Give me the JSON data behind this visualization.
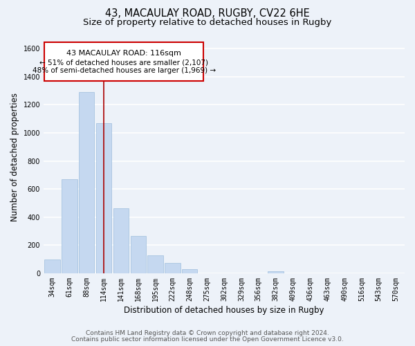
{
  "title": "43, MACAULAY ROAD, RUGBY, CV22 6HE",
  "subtitle": "Size of property relative to detached houses in Rugby",
  "xlabel": "Distribution of detached houses by size in Rugby",
  "ylabel": "Number of detached properties",
  "bar_labels": [
    "34sqm",
    "61sqm",
    "88sqm",
    "114sqm",
    "141sqm",
    "168sqm",
    "195sqm",
    "222sqm",
    "248sqm",
    "275sqm",
    "302sqm",
    "329sqm",
    "356sqm",
    "382sqm",
    "409sqm",
    "436sqm",
    "463sqm",
    "490sqm",
    "516sqm",
    "543sqm",
    "570sqm"
  ],
  "bar_values": [
    100,
    670,
    1290,
    1070,
    465,
    265,
    130,
    75,
    30,
    0,
    0,
    0,
    0,
    15,
    0,
    0,
    0,
    0,
    0,
    0,
    0
  ],
  "bar_color": "#c5d8f0",
  "bar_edge_color": "#a8c4e0",
  "vline_x_index": 3,
  "vline_color": "#aa0000",
  "ylim": [
    0,
    1650
  ],
  "yticks": [
    0,
    200,
    400,
    600,
    800,
    1000,
    1200,
    1400,
    1600
  ],
  "annotation_title": "43 MACAULAY ROAD: 116sqm",
  "annotation_line1": "← 51% of detached houses are smaller (2,107)",
  "annotation_line2": "48% of semi-detached houses are larger (1,969) →",
  "annotation_box_color": "#ffffff",
  "annotation_box_edge": "#cc0000",
  "footer_line1": "Contains HM Land Registry data © Crown copyright and database right 2024.",
  "footer_line2": "Contains public sector information licensed under the Open Government Licence v3.0.",
  "bg_color": "#edf2f9",
  "plot_bg_color": "#edf2f9",
  "grid_color": "#ffffff",
  "title_fontsize": 10.5,
  "subtitle_fontsize": 9.5,
  "axis_label_fontsize": 8.5,
  "tick_fontsize": 7,
  "annotation_title_fontsize": 8,
  "annotation_body_fontsize": 7.5,
  "footer_fontsize": 6.5
}
